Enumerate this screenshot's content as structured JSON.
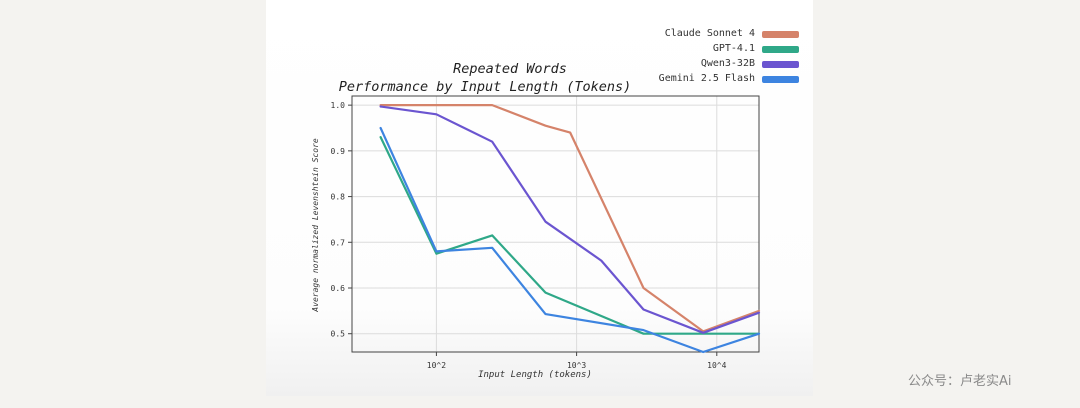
{
  "chart_data": {
    "type": "line",
    "title": "Repeated Words",
    "subtitle": "Performance by Input Length (Tokens)",
    "xlabel": "Input Length (tokens)",
    "ylabel": "Average normalized Levenshtein Score",
    "x_scale": "log",
    "xlim": [
      25,
      20000
    ],
    "ylim": [
      0.46,
      1.02
    ],
    "x_ticks": [
      100,
      1000,
      10000
    ],
    "x_tick_labels": [
      "10^2",
      "10^3",
      "10^4"
    ],
    "y_ticks": [
      0.5,
      0.6,
      0.7,
      0.8,
      0.9,
      1.0
    ],
    "y_tick_labels": [
      "0.5",
      "0.6",
      "0.7",
      "0.8",
      "0.9",
      "1.0"
    ],
    "grid": true,
    "legend_position": "top-right",
    "series": [
      {
        "name": "Claude Sonnet 4",
        "color": "#d5836a",
        "x": [
          40,
          100,
          250,
          600,
          900,
          3000,
          8000,
          20000
        ],
        "y": [
          1.0,
          1.0,
          1.0,
          0.955,
          0.94,
          0.6,
          0.505,
          0.55
        ]
      },
      {
        "name": "GPT-4.1",
        "color": "#2fa888",
        "x": [
          40,
          100,
          250,
          600,
          3000,
          8000,
          20000
        ],
        "y": [
          0.93,
          0.675,
          0.715,
          0.59,
          0.5,
          0.5,
          0.5
        ]
      },
      {
        "name": "Qwen3-32B",
        "color": "#6b55d0",
        "x": [
          40,
          100,
          250,
          600,
          1500,
          3000,
          8000,
          20000
        ],
        "y": [
          0.997,
          0.98,
          0.92,
          0.745,
          0.66,
          0.553,
          0.502,
          0.546
        ]
      },
      {
        "name": "Gemini 2.5 Flash",
        "color": "#3d84e0",
        "x": [
          40,
          100,
          250,
          600,
          3000,
          8000,
          20000
        ],
        "y": [
          0.95,
          0.68,
          0.688,
          0.543,
          0.508,
          0.46,
          0.5
        ]
      }
    ]
  },
  "watermark": "公众号：卢老实Ai"
}
